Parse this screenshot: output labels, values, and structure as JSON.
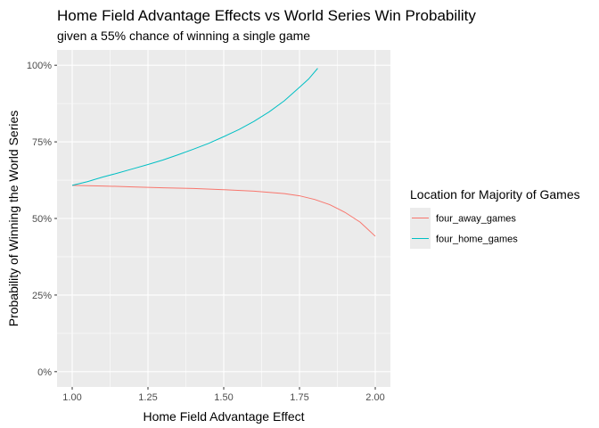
{
  "chart_data": {
    "type": "line",
    "title": "Home Field Advantage Effects vs World Series Win Probability",
    "subtitle": "given a 55% chance of winning a single game",
    "xlabel": "Home Field Advantage Effect",
    "ylabel": "Probability of Winning the World Series",
    "xlim": [
      0.95,
      2.05
    ],
    "ylim": [
      -0.05,
      1.05
    ],
    "x_ticks": [
      1.0,
      1.25,
      1.5,
      1.75,
      2.0
    ],
    "x_tick_labels": [
      "1.00",
      "1.25",
      "1.50",
      "1.75",
      "2.00"
    ],
    "y_ticks": [
      0,
      0.25,
      0.5,
      0.75,
      1.0
    ],
    "y_tick_labels": [
      "0%",
      "25%",
      "50%",
      "75%",
      "100%"
    ],
    "grid": true,
    "panel_background": "#EBEBEB",
    "legend": {
      "title": "Location for Majority of Games",
      "position": "right"
    },
    "series": [
      {
        "name": "four_away_games",
        "color": "#F8766D",
        "x": [
          1.0,
          1.1,
          1.2,
          1.3,
          1.4,
          1.5,
          1.6,
          1.7,
          1.75,
          1.8,
          1.85,
          1.9,
          1.95,
          2.0
        ],
        "y": [
          0.608,
          0.606,
          0.603,
          0.6,
          0.598,
          0.594,
          0.589,
          0.581,
          0.574,
          0.562,
          0.545,
          0.52,
          0.488,
          0.442
        ]
      },
      {
        "name": "four_home_games",
        "color": "#00BFC4",
        "x": [
          1.0,
          1.05,
          1.1,
          1.15,
          1.2,
          1.25,
          1.3,
          1.35,
          1.4,
          1.45,
          1.5,
          1.55,
          1.6,
          1.65,
          1.7,
          1.75,
          1.78,
          1.81
        ],
        "y": [
          0.608,
          0.62,
          0.635,
          0.648,
          0.662,
          0.676,
          0.691,
          0.708,
          0.726,
          0.745,
          0.767,
          0.79,
          0.817,
          0.848,
          0.884,
          0.928,
          0.955,
          0.99
        ]
      }
    ]
  }
}
